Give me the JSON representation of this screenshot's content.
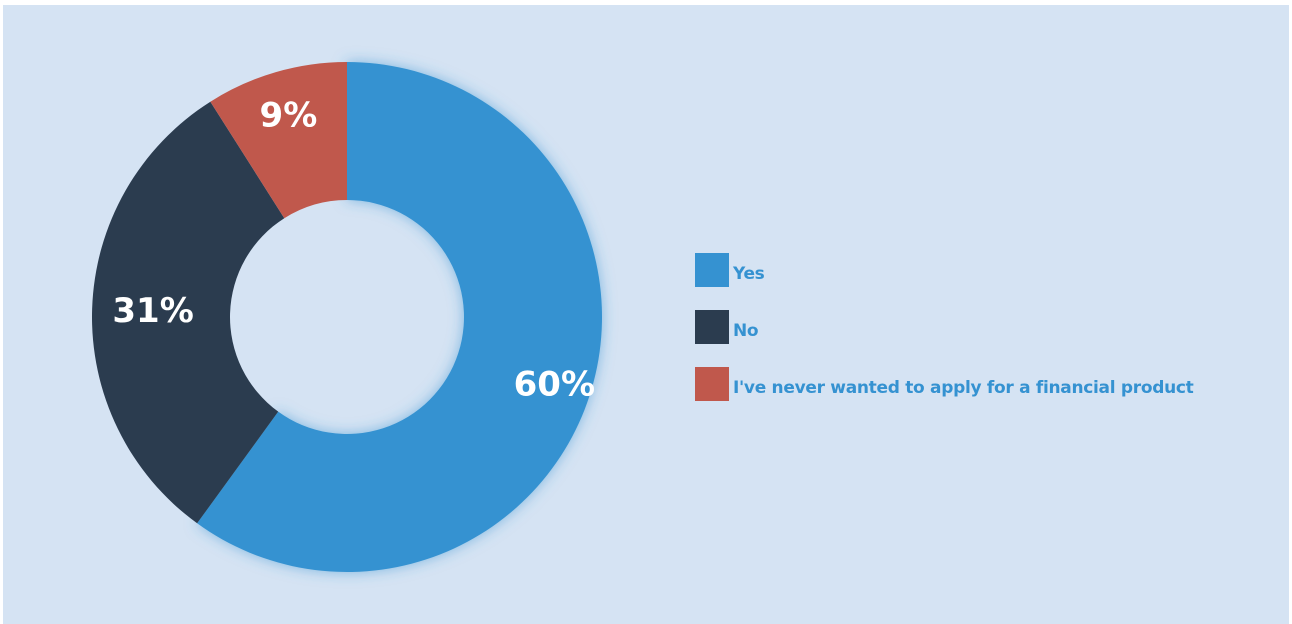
{
  "chart_data": {
    "type": "pie",
    "donut": true,
    "categories": [
      "Yes",
      "No",
      "I've never wanted to apply for a financial product"
    ],
    "values": [
      60,
      31,
      9
    ],
    "labels": [
      "60%",
      "31%",
      "9%"
    ],
    "colors": [
      "#3592d1",
      "#2b3c4f",
      "#c0584c"
    ],
    "legend_position": "right",
    "background": "#d5e3f3",
    "title": ""
  }
}
